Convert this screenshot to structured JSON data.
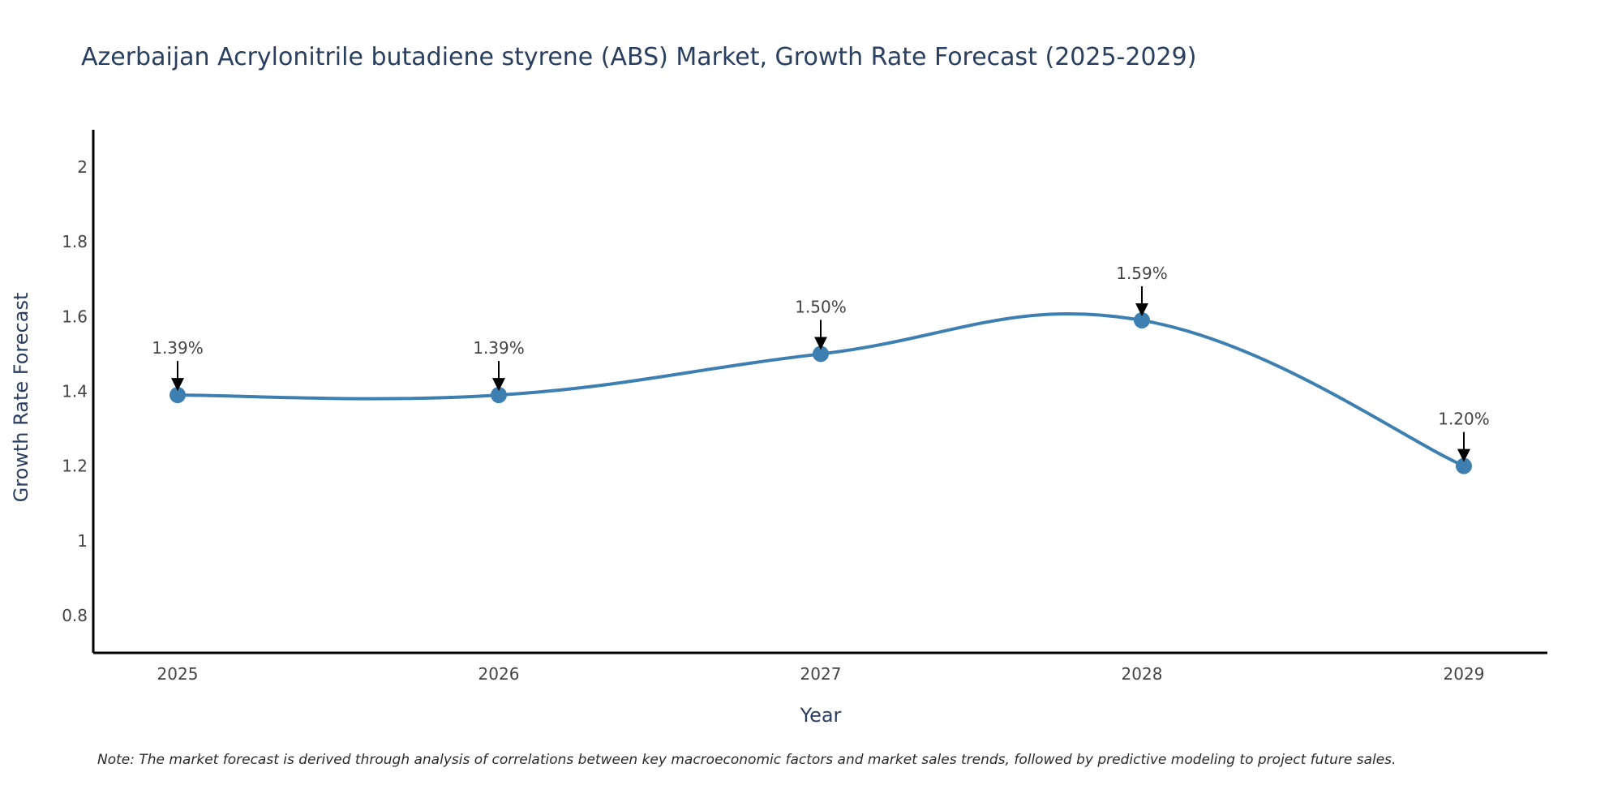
{
  "chart_data": {
    "type": "line",
    "title": "Azerbaijan Acrylonitrile butadiene styrene (ABS) Market, Growth Rate Forecast (2025-2029)",
    "xlabel": "Year",
    "ylabel": "Growth Rate Forecast",
    "categories": [
      "2025",
      "2026",
      "2027",
      "2028",
      "2029"
    ],
    "values": [
      1.39,
      1.39,
      1.5,
      1.59,
      1.2
    ],
    "data_labels": [
      "1.39%",
      "1.39%",
      "1.50%",
      "1.59%",
      "1.20%"
    ],
    "ylim": [
      0.7,
      2.1
    ],
    "yticks": [
      0.8,
      1,
      1.2,
      1.4,
      1.6,
      1.8,
      2
    ],
    "ytick_labels": [
      "0.8",
      "1",
      "1.2",
      "1.4",
      "1.6",
      "1.8",
      "2"
    ],
    "line_shape": "spline",
    "grid": false,
    "series_color": "#3d7fb1",
    "annotation_arrow_color": "#000000"
  },
  "note": "Note: The market forecast is derived through analysis of correlations between key macroeconomic factors and market sales trends, followed by predictive modeling to project future sales."
}
